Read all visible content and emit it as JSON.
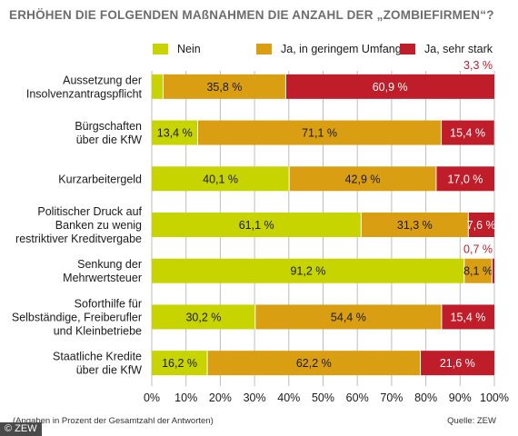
{
  "title": "ERHÖHEN DIE FOLGENDEN MAßNAHMEN DIE ANZAHL DER „ZOMBIEFIRMEN“?",
  "footnote": "(Angaben in Prozent der Gesamtzahl der Antworten)",
  "source": "Quelle: ZEW",
  "copyright": "© ZEW",
  "colors": {
    "nein": "#c8d400",
    "gering": "#d99e11",
    "stark": "#c01d2a",
    "grid": "#bdbdbd"
  },
  "chart_data": {
    "type": "bar",
    "orientation": "horizontal",
    "stacked": true,
    "categories": [
      [
        "Aussetzung der",
        "Insolvenzantragspflicht"
      ],
      [
        "Bürgschaften",
        "über die KfW"
      ],
      [
        "Kurzarbeitergeld"
      ],
      [
        "Politischer Druck auf",
        "Banken zu wenig",
        "restriktiver Kreditvergabe"
      ],
      [
        "Senkung der",
        "Mehrwertsteuer"
      ],
      [
        "Soforthilfe für",
        "Selbständige, Freiberufler",
        "und Kleinbetriebe"
      ],
      [
        "Staatliche Kredite",
        "über die KfW"
      ]
    ],
    "series": [
      {
        "name": "Nein",
        "values": [
          3.3,
          13.4,
          40.1,
          61.1,
          91.2,
          30.2,
          16.2
        ],
        "labels": [
          "3,3 %",
          "13,4 %",
          "40,1 %",
          "61,1 %",
          "91,2 %",
          "30,2 %",
          "16,2 %"
        ]
      },
      {
        "name": "Ja, in geringem Umfang",
        "values": [
          35.8,
          71.1,
          42.9,
          31.3,
          8.1,
          54.4,
          62.2
        ],
        "labels": [
          "35,8 %",
          "71,1 %",
          "42,9 %",
          "31,3 %",
          "8,1 %",
          "54,4 %",
          "62,2 %"
        ]
      },
      {
        "name": "Ja, sehr stark",
        "values": [
          60.9,
          15.4,
          17.0,
          7.6,
          0.7,
          15.4,
          21.6
        ],
        "labels": [
          "60,9 %",
          "15,4 %",
          "17,0 %",
          "7,6 %",
          "0,7 %",
          "15,4 %",
          "21,6 %"
        ]
      }
    ],
    "xlim": [
      0,
      100
    ],
    "xticks": [
      "0%",
      "10%",
      "20%",
      "30%",
      "40%",
      "50%",
      "60%",
      "70%",
      "80%",
      "90%",
      "100%"
    ],
    "grid": true,
    "legend_position": "top"
  }
}
